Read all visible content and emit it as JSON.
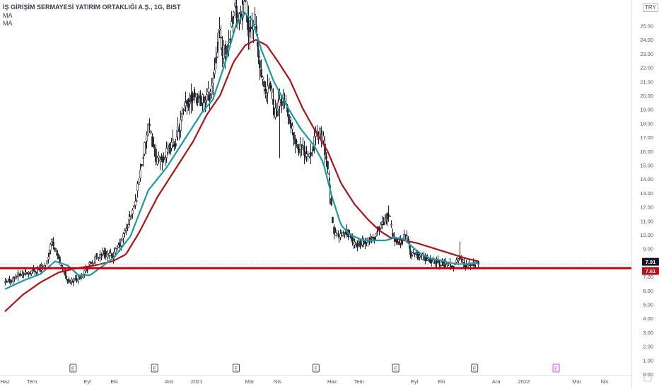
{
  "legend": {
    "title": "İŞ GİRİŞİM SERMAYESİ YATIRIM ORTAKLIĞI A.Ş., 1G, BIST",
    "ma1": "MA",
    "ma2": "MA"
  },
  "currency": "TRY",
  "colors": {
    "candle": "#1e222d",
    "ma_fast": "#1b9aa6",
    "ma_slow": "#b0121a",
    "support": "#c4000b",
    "axis_text": "#50535e",
    "price_badge": "#131722",
    "level_badge": "#b0121a",
    "earnings_marker": "#50535e",
    "earnings_future": "#e040fb"
  },
  "chart_data": {
    "type": "candlestick",
    "title": "",
    "xlabel": "",
    "ylabel": "",
    "ylim": [
      0,
      26.8
    ],
    "y_ticks": [
      0,
      1,
      2,
      3,
      4,
      5,
      6,
      7,
      8,
      9,
      10,
      11,
      12,
      13,
      14,
      15,
      16,
      17,
      18,
      19,
      20,
      21,
      22,
      23,
      24,
      25
    ],
    "x_ticks": [
      {
        "label": "Haz",
        "day": 0
      },
      {
        "label": "Tem",
        "day": 30
      },
      {
        "label": "Eyl",
        "day": 92
      },
      {
        "label": "Eki",
        "day": 122
      },
      {
        "label": "Ara",
        "day": 183
      },
      {
        "label": "2021",
        "day": 214
      },
      {
        "label": "Mar",
        "day": 273
      },
      {
        "label": "Nis",
        "day": 304
      },
      {
        "label": "Haz",
        "day": 365
      },
      {
        "label": "Tem",
        "day": 395
      },
      {
        "label": "Eyl",
        "day": 457
      },
      {
        "label": "Eki",
        "day": 487
      },
      {
        "label": "Ara",
        "day": 548
      },
      {
        "label": "2022",
        "day": 579
      },
      {
        "label": "Mar",
        "day": 638
      },
      {
        "label": "Nis",
        "day": 669
      }
    ],
    "x_range": [
      0,
      732
    ],
    "last_day": 528,
    "price_path": [
      [
        0,
        6.5
      ],
      [
        15,
        7.1
      ],
      [
        30,
        7.4
      ],
      [
        45,
        7.7
      ],
      [
        52,
        9.6
      ],
      [
        60,
        8.3
      ],
      [
        70,
        6.6
      ],
      [
        82,
        6.9
      ],
      [
        95,
        7.9
      ],
      [
        108,
        8.7
      ],
      [
        120,
        8.4
      ],
      [
        130,
        9.6
      ],
      [
        145,
        12.2
      ],
      [
        153,
        15.5
      ],
      [
        160,
        17.7
      ],
      [
        170,
        15.2
      ],
      [
        180,
        15.8
      ],
      [
        190,
        16.8
      ],
      [
        200,
        19.0
      ],
      [
        210,
        20.2
      ],
      [
        220,
        19.6
      ],
      [
        230,
        20.3
      ],
      [
        238,
        24.5
      ],
      [
        245,
        22.8
      ],
      [
        250,
        24.0
      ],
      [
        255,
        26.5
      ],
      [
        262,
        25.5
      ],
      [
        268,
        26.2
      ],
      [
        272,
        24.6
      ],
      [
        278,
        25.4
      ],
      [
        284,
        22.0
      ],
      [
        290,
        19.8
      ],
      [
        296,
        20.6
      ],
      [
        302,
        18.6
      ],
      [
        310,
        20.0
      ],
      [
        318,
        17.8
      ],
      [
        326,
        16.4
      ],
      [
        334,
        16.0
      ],
      [
        340,
        15.9
      ],
      [
        350,
        17.6
      ],
      [
        356,
        16.5
      ],
      [
        362,
        13.6
      ],
      [
        366,
        10.3
      ],
      [
        372,
        9.8
      ],
      [
        382,
        10.2
      ],
      [
        390,
        9.3
      ],
      [
        400,
        9.4
      ],
      [
        410,
        9.7
      ],
      [
        420,
        10.8
      ],
      [
        428,
        11.5
      ],
      [
        432,
        10.0
      ],
      [
        440,
        9.3
      ],
      [
        447,
        10.1
      ],
      [
        452,
        8.7
      ],
      [
        462,
        8.5
      ],
      [
        472,
        8.2
      ],
      [
        482,
        8.1
      ],
      [
        492,
        7.9
      ],
      [
        500,
        7.8
      ],
      [
        508,
        8.4
      ],
      [
        512,
        7.8
      ],
      [
        520,
        8.0
      ],
      [
        528,
        7.91
      ]
    ],
    "spike_days": [
      [
        306,
        15.5
      ],
      [
        363,
        12.2
      ],
      [
        428,
        12.1
      ],
      [
        507,
        9.5
      ],
      [
        264,
        27.3
      ]
    ],
    "ma_fast": {
      "name": "MA",
      "points": [
        [
          0,
          6.1
        ],
        [
          20,
          6.7
        ],
        [
          40,
          7.2
        ],
        [
          56,
          8.1
        ],
        [
          70,
          7.8
        ],
        [
          82,
          7.1
        ],
        [
          95,
          7.1
        ],
        [
          110,
          7.8
        ],
        [
          122,
          8.4
        ],
        [
          140,
          9.9
        ],
        [
          160,
          13.2
        ],
        [
          180,
          14.8
        ],
        [
          200,
          16.8
        ],
        [
          220,
          18.8
        ],
        [
          232,
          19.7
        ],
        [
          245,
          22.2
        ],
        [
          258,
          25.1
        ],
        [
          268,
          25.9
        ],
        [
          276,
          25.4
        ],
        [
          286,
          23.3
        ],
        [
          300,
          21.0
        ],
        [
          315,
          19.2
        ],
        [
          330,
          17.6
        ],
        [
          345,
          16.4
        ],
        [
          355,
          15.2
        ],
        [
          365,
          12.7
        ],
        [
          375,
          10.7
        ],
        [
          385,
          10.0
        ],
        [
          400,
          9.6
        ],
        [
          415,
          9.6
        ],
        [
          425,
          9.6
        ],
        [
          435,
          9.8
        ],
        [
          445,
          9.7
        ],
        [
          455,
          9.1
        ],
        [
          465,
          8.6
        ],
        [
          475,
          8.3
        ],
        [
          485,
          8.2
        ],
        [
          495,
          8.0
        ],
        [
          505,
          7.9
        ],
        [
          515,
          7.9
        ],
        [
          528,
          8.0
        ]
      ]
    },
    "ma_slow": {
      "name": "MA",
      "points": [
        [
          0,
          4.5
        ],
        [
          20,
          5.7
        ],
        [
          40,
          6.6
        ],
        [
          60,
          7.3
        ],
        [
          80,
          7.6
        ],
        [
          100,
          7.8
        ],
        [
          120,
          8.1
        ],
        [
          135,
          8.6
        ],
        [
          150,
          10.2
        ],
        [
          170,
          12.7
        ],
        [
          190,
          14.7
        ],
        [
          210,
          16.7
        ],
        [
          225,
          18.6
        ],
        [
          240,
          20.0
        ],
        [
          255,
          22.4
        ],
        [
          268,
          23.6
        ],
        [
          280,
          24.0
        ],
        [
          292,
          23.6
        ],
        [
          305,
          22.4
        ],
        [
          318,
          21.1
        ],
        [
          332,
          19.1
        ],
        [
          345,
          17.6
        ],
        [
          360,
          16.0
        ],
        [
          375,
          13.7
        ],
        [
          390,
          12.2
        ],
        [
          405,
          11.1
        ],
        [
          418,
          10.3
        ],
        [
          430,
          9.8
        ],
        [
          445,
          9.6
        ],
        [
          460,
          9.4
        ],
        [
          480,
          9.0
        ],
        [
          500,
          8.6
        ],
        [
          515,
          8.3
        ],
        [
          528,
          8.1
        ]
      ]
    },
    "horizontal_lines": [
      {
        "value": 7.91,
        "style": "thin"
      },
      {
        "value": 7.61,
        "style": "thick"
      }
    ],
    "price_badges": [
      {
        "value": 7.91,
        "label": "7.91"
      },
      {
        "value": 7.61,
        "label": "7.61"
      }
    ],
    "earnings_markers": [
      {
        "label": "E",
        "day": 76,
        "future": false
      },
      {
        "label": "E",
        "day": 167,
        "future": false
      },
      {
        "label": "E",
        "day": 258,
        "future": false
      },
      {
        "label": "E",
        "day": 347,
        "future": false
      },
      {
        "label": "E",
        "day": 436,
        "future": false
      },
      {
        "label": "E",
        "day": 524,
        "future": false
      },
      {
        "label": "E",
        "day": 615,
        "future": true
      }
    ]
  }
}
